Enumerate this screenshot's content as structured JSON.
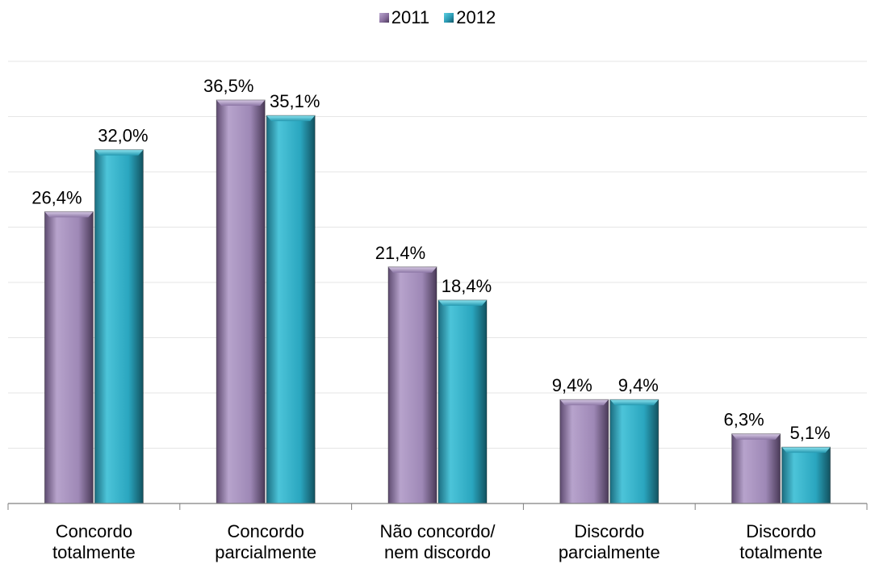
{
  "chart_data": {
    "type": "bar",
    "categories": [
      [
        "Concordo",
        "totalmente"
      ],
      [
        "Concordo",
        "parcialmente"
      ],
      [
        "Não concordo/",
        "nem discordo"
      ],
      [
        "Discordo",
        "parcialmente"
      ],
      [
        "Discordo",
        "totalmente"
      ]
    ],
    "series": [
      {
        "name": "2011",
        "values": [
          26.4,
          36.5,
          21.4,
          9.4,
          6.3
        ],
        "labels": [
          "26,4%",
          "36,5%",
          "21,4%",
          "9,4%",
          "6,3%"
        ]
      },
      {
        "name": "2012",
        "values": [
          32.0,
          35.1,
          18.4,
          9.4,
          5.1
        ],
        "labels": [
          "32,0%",
          "35,1%",
          "18,4%",
          "9,4%",
          "5,1%"
        ]
      }
    ],
    "ylim": [
      0,
      40
    ],
    "grid": true,
    "legend": "top-center",
    "colors": {
      "2011": "#a48fbd",
      "2012": "#33b3cc"
    }
  }
}
